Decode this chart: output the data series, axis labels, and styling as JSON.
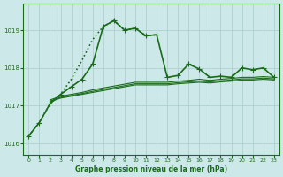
{
  "title": "Graphe pression niveau de la mer (hPa)",
  "background_color": "#cce8e8",
  "grid_color": "#aacccc",
  "line_color": "#1a6b1a",
  "x_ticks": [
    0,
    1,
    2,
    3,
    4,
    5,
    6,
    7,
    8,
    9,
    10,
    11,
    12,
    13,
    14,
    15,
    16,
    17,
    18,
    19,
    20,
    21,
    22,
    23
  ],
  "ylim": [
    1015.7,
    1019.7
  ],
  "yticks": [
    1016,
    1017,
    1018,
    1019
  ],
  "main_series": {
    "x": [
      0,
      1,
      2,
      3,
      4,
      5,
      6,
      7,
      8,
      9,
      10,
      11,
      12,
      13,
      14,
      15,
      16,
      17,
      18,
      19,
      20,
      21,
      22,
      23
    ],
    "y": [
      1016.2,
      1016.55,
      1017.05,
      1017.3,
      1017.5,
      1017.7,
      1018.1,
      1019.1,
      1019.25,
      1019.0,
      1019.05,
      1018.85,
      1018.88,
      1017.75,
      1017.8,
      1018.1,
      1017.97,
      1017.75,
      1017.78,
      1017.75,
      1018.0,
      1017.95,
      1018.0,
      1017.75
    ],
    "marker": "+",
    "linestyle": "-",
    "linewidth": 1.2,
    "markersize": 4
  },
  "dotted_series": {
    "x": [
      0,
      1,
      2,
      3,
      4,
      5,
      6,
      7,
      8,
      9,
      10,
      11,
      12
    ],
    "y": [
      1016.2,
      1016.55,
      1017.05,
      1017.3,
      1017.7,
      1018.2,
      1018.75,
      1019.1,
      1019.25,
      1019.0,
      1019.05,
      1018.85,
      1018.88
    ],
    "linestyle": ":",
    "linewidth": 1.2
  },
  "flat_lines": [
    {
      "x": [
        2,
        3,
        4,
        5,
        6,
        7,
        8,
        9,
        10,
        11,
        12,
        13,
        14,
        15,
        16,
        17,
        18,
        19,
        20,
        21,
        22,
        23
      ],
      "y": [
        1017.1,
        1017.2,
        1017.25,
        1017.3,
        1017.35,
        1017.4,
        1017.45,
        1017.5,
        1017.55,
        1017.55,
        1017.55,
        1017.55,
        1017.58,
        1017.6,
        1017.62,
        1017.6,
        1017.63,
        1017.65,
        1017.68,
        1017.68,
        1017.7,
        1017.68
      ]
    },
    {
      "x": [
        2,
        3,
        4,
        5,
        6,
        7,
        8,
        9,
        10,
        11,
        12,
        13,
        14,
        15,
        16,
        17,
        18,
        19,
        20,
        21,
        22,
        23
      ],
      "y": [
        1017.12,
        1017.22,
        1017.27,
        1017.32,
        1017.38,
        1017.43,
        1017.48,
        1017.53,
        1017.58,
        1017.58,
        1017.58,
        1017.58,
        1017.61,
        1017.63,
        1017.65,
        1017.63,
        1017.66,
        1017.68,
        1017.71,
        1017.71,
        1017.73,
        1017.71
      ]
    },
    {
      "x": [
        2,
        3,
        4,
        5,
        6,
        7,
        8,
        9,
        10,
        11,
        12,
        13,
        14,
        15,
        16,
        17,
        18,
        19,
        20,
        21,
        22,
        23
      ],
      "y": [
        1017.15,
        1017.25,
        1017.3,
        1017.35,
        1017.42,
        1017.47,
        1017.52,
        1017.57,
        1017.62,
        1017.62,
        1017.62,
        1017.62,
        1017.65,
        1017.67,
        1017.7,
        1017.67,
        1017.7,
        1017.72,
        1017.75,
        1017.75,
        1017.77,
        1017.75
      ]
    }
  ]
}
